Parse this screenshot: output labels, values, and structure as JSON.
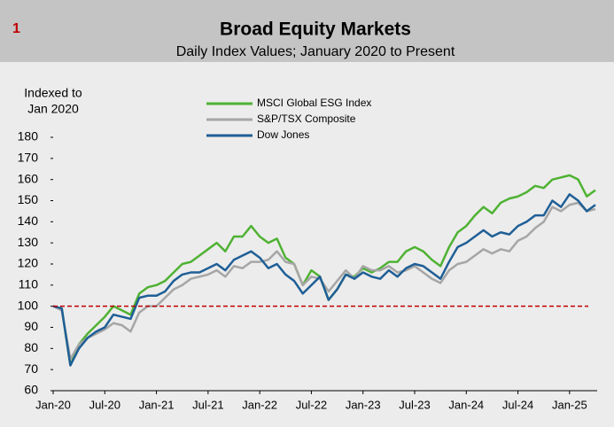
{
  "header": {
    "number": "1",
    "title": "Broad Equity Markets",
    "subtitle": "Daily Index Values; January 2020 to Present"
  },
  "chart_data": {
    "type": "line",
    "ylabel": [
      "Indexed to",
      "Jan 2020"
    ],
    "x": [
      "Jan-20",
      null,
      null,
      null,
      null,
      null,
      "Jul-20",
      null,
      null,
      null,
      null,
      null,
      "Jan-21",
      null,
      null,
      null,
      null,
      null,
      "Jul-21",
      null,
      null,
      null,
      null,
      null,
      "Jan-22",
      null,
      null,
      null,
      null,
      null,
      "Jul-22",
      null,
      null,
      null,
      null,
      null,
      "Jan-23",
      null,
      null,
      null,
      null,
      null,
      "Jul-23",
      null,
      null,
      null,
      null,
      null,
      "Jan-24",
      null,
      null,
      null,
      null,
      null,
      "Jul-24",
      null,
      null,
      null,
      null,
      null,
      "Jan-25",
      null,
      null,
      null
    ],
    "series": [
      {
        "name": "MSCI Global ESG Index",
        "color": "#4fb233",
        "values": [
          100,
          99,
          72,
          82,
          87,
          91,
          95,
          100,
          98,
          96,
          106,
          109,
          110,
          112,
          116,
          120,
          121,
          124,
          127,
          130,
          126,
          133,
          133,
          138,
          133,
          130,
          132,
          123,
          120,
          110,
          117,
          114,
          103,
          108,
          115,
          114,
          118,
          116,
          118,
          121,
          121,
          126,
          128,
          126,
          122,
          119,
          128,
          135,
          138,
          143,
          147,
          144,
          149,
          151,
          152,
          154,
          157,
          156,
          160,
          161,
          162,
          160,
          152,
          155
        ]
      },
      {
        "name": "S&P/TSX Composite",
        "color": "#a6a6a6",
        "values": [
          100,
          98,
          75,
          82,
          85,
          87,
          89,
          92,
          91,
          88,
          97,
          100,
          100,
          104,
          108,
          110,
          113,
          114,
          115,
          117,
          114,
          119,
          118,
          121,
          121,
          122,
          126,
          121,
          120,
          110,
          114,
          113,
          107,
          112,
          117,
          113,
          119,
          117,
          117,
          119,
          116,
          117,
          119,
          116,
          113,
          111,
          117,
          120,
          121,
          124,
          127,
          125,
          127,
          126,
          131,
          133,
          137,
          140,
          147,
          145,
          148,
          149,
          145,
          146
        ]
      },
      {
        "name": "Dow Jones",
        "color": "#1f5f96",
        "values": [
          100,
          99,
          72,
          80,
          85,
          88,
          90,
          96,
          95,
          94,
          104,
          105,
          105,
          107,
          112,
          115,
          116,
          116,
          118,
          120,
          117,
          122,
          124,
          126,
          123,
          118,
          120,
          115,
          112,
          106,
          110,
          114,
          103,
          108,
          115,
          113,
          116,
          114,
          113,
          117,
          114,
          118,
          120,
          119,
          116,
          113,
          121,
          128,
          130,
          133,
          136,
          133,
          135,
          134,
          138,
          140,
          143,
          143,
          150,
          147,
          153,
          150,
          145,
          148
        ]
      }
    ],
    "hline": {
      "value": 100,
      "color": "#c00000"
    },
    "ylim": [
      60,
      180
    ],
    "yticks": [
      60,
      70,
      80,
      90,
      100,
      110,
      120,
      130,
      140,
      150,
      160,
      170,
      180
    ]
  }
}
